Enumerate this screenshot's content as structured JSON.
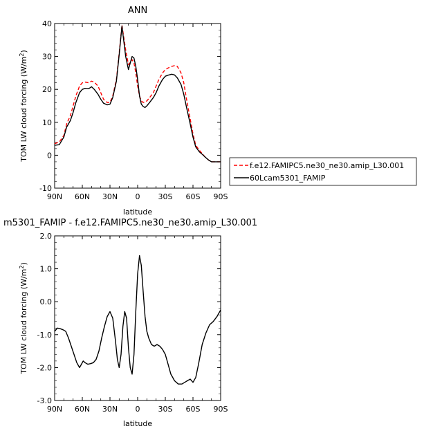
{
  "chart_data": [
    {
      "type": "line",
      "title": "ANN",
      "xlabel": "latitude",
      "ylabel": "TOM LW cloud forcing (W/m",
      "ylabel_sup": "2",
      "ylabel_end": ")",
      "xlim": [
        90,
        -90
      ],
      "ylim": [
        -10,
        40
      ],
      "x_ticks": [
        {
          "value": 90,
          "label": "90N"
        },
        {
          "value": 60,
          "label": "60N"
        },
        {
          "value": 30,
          "label": "30N"
        },
        {
          "value": 0,
          "label": "0"
        },
        {
          "value": -30,
          "label": "30S"
        },
        {
          "value": -60,
          "label": "60S"
        },
        {
          "value": -90,
          "label": "90S"
        }
      ],
      "y_ticks": [
        {
          "value": -10,
          "label": "-10"
        },
        {
          "value": 0,
          "label": "0"
        },
        {
          "value": 10,
          "label": "10"
        },
        {
          "value": 20,
          "label": "20"
        },
        {
          "value": 30,
          "label": "30"
        },
        {
          "value": 40,
          "label": "40"
        }
      ],
      "legend_position": "right",
      "series": [
        {
          "name": "f.e12.FAMIPC5.ne30_ne30.amip_L30.001",
          "color": "#ff0000",
          "dash": "dashed",
          "x": [
            90,
            85,
            80,
            77,
            73,
            70,
            67,
            63,
            60,
            57,
            53,
            50,
            47,
            43,
            40,
            37,
            33,
            30,
            27,
            23,
            20,
            17,
            13,
            10,
            8,
            6,
            4,
            2,
            0,
            -2,
            -4,
            -6,
            -8,
            -10,
            -13,
            -17,
            -20,
            -23,
            -27,
            -30,
            -33,
            -37,
            -40,
            -43,
            -47,
            -50,
            -53,
            -57,
            -60,
            -63,
            -67,
            -70,
            -73,
            -77,
            -80,
            -85,
            -90
          ],
          "y": [
            3.5,
            4.0,
            6.0,
            9.5,
            12.0,
            15.0,
            18.0,
            21.0,
            22.0,
            22.2,
            22.0,
            22.5,
            22.2,
            21.0,
            19.0,
            17.0,
            16.0,
            16.0,
            18.0,
            23.0,
            31.0,
            39.5,
            32.0,
            27.5,
            28.5,
            29.0,
            28.0,
            25.0,
            21.0,
            18.0,
            16.5,
            16.0,
            16.2,
            16.5,
            17.5,
            19.0,
            21.0,
            23.0,
            25.0,
            26.0,
            26.5,
            27.0,
            27.2,
            27.0,
            25.0,
            22.0,
            17.0,
            11.0,
            6.5,
            3.0,
            1.5,
            0.5,
            -0.5,
            -1.5,
            -2.0,
            -2.0,
            -2.0
          ]
        },
        {
          "name": "60Lcam5301_FAMIP",
          "color": "#000000",
          "dash": "solid",
          "x": [
            90,
            85,
            80,
            77,
            73,
            70,
            67,
            63,
            60,
            57,
            53,
            50,
            47,
            43,
            40,
            37,
            33,
            30,
            27,
            23,
            20,
            17,
            13,
            10,
            8,
            6,
            4,
            2,
            0,
            -2,
            -4,
            -6,
            -8,
            -10,
            -13,
            -17,
            -20,
            -23,
            -27,
            -30,
            -33,
            -37,
            -40,
            -43,
            -47,
            -50,
            -53,
            -57,
            -60,
            -63,
            -67,
            -70,
            -73,
            -77,
            -80,
            -85,
            -90
          ],
          "y": [
            3.0,
            3.2,
            5.5,
            8.5,
            10.5,
            13.0,
            16.0,
            19.0,
            20.0,
            20.3,
            20.2,
            20.8,
            20.0,
            18.5,
            17.0,
            15.8,
            15.3,
            15.5,
            17.5,
            22.5,
            30.5,
            39.2,
            30.0,
            26.0,
            28.0,
            30.0,
            29.5,
            27.0,
            23.0,
            18.0,
            15.5,
            14.8,
            14.5,
            15.0,
            16.0,
            17.5,
            19.0,
            21.0,
            23.0,
            24.0,
            24.3,
            24.6,
            24.4,
            23.5,
            21.5,
            18.5,
            14.5,
            9.5,
            5.5,
            2.5,
            1.0,
            0.3,
            -0.5,
            -1.5,
            -2.0,
            -2.0,
            -2.0
          ]
        }
      ]
    },
    {
      "type": "line",
      "title": "m5301_FAMIP - f.e12.FAMIPC5.ne30_ne30.amip_L30.001",
      "xlabel": "latitude",
      "ylabel": "TOM LW cloud forcing (W/m",
      "ylabel_sup": "2",
      "ylabel_end": ")",
      "xlim": [
        90,
        -90
      ],
      "ylim": [
        -3.0,
        2.0
      ],
      "x_ticks": [
        {
          "value": 90,
          "label": "90N"
        },
        {
          "value": 60,
          "label": "60N"
        },
        {
          "value": 30,
          "label": "30N"
        },
        {
          "value": 0,
          "label": "0"
        },
        {
          "value": -30,
          "label": "30S"
        },
        {
          "value": -60,
          "label": "60S"
        },
        {
          "value": -90,
          "label": "90S"
        }
      ],
      "y_ticks": [
        {
          "value": -3.0,
          "label": "-3.0"
        },
        {
          "value": -2.0,
          "label": "-2.0"
        },
        {
          "value": -1.0,
          "label": "-1.0"
        },
        {
          "value": 0.0,
          "label": "0.0"
        },
        {
          "value": 1.0,
          "label": "1.0"
        },
        {
          "value": 2.0,
          "label": "2.0"
        }
      ],
      "series": [
        {
          "color": "#000000",
          "dash": "solid",
          "x": [
            90,
            87,
            84,
            81,
            78,
            75,
            72,
            69,
            66,
            63,
            61,
            59,
            57,
            54,
            51,
            48,
            45,
            42,
            39,
            36,
            33,
            30,
            27,
            24,
            22,
            20,
            18,
            16,
            14,
            12,
            10,
            8,
            6,
            4,
            2,
            0,
            -2,
            -4,
            -6,
            -8,
            -10,
            -12,
            -15,
            -18,
            -21,
            -24,
            -27,
            -30,
            -33,
            -36,
            -40,
            -44,
            -48,
            -51,
            -54,
            -57,
            -60,
            -63,
            -66,
            -70,
            -74,
            -78,
            -82,
            -86,
            -90
          ],
          "y": [
            -0.9,
            -0.8,
            -0.82,
            -0.85,
            -0.9,
            -1.1,
            -1.35,
            -1.6,
            -1.85,
            -2.0,
            -1.9,
            -1.8,
            -1.85,
            -1.9,
            -1.88,
            -1.85,
            -1.75,
            -1.5,
            -1.1,
            -0.75,
            -0.45,
            -0.3,
            -0.5,
            -1.2,
            -1.75,
            -2.0,
            -1.6,
            -0.75,
            -0.3,
            -0.5,
            -1.4,
            -2.0,
            -2.2,
            -1.6,
            -0.3,
            0.85,
            1.4,
            1.1,
            0.3,
            -0.45,
            -0.9,
            -1.1,
            -1.3,
            -1.35,
            -1.3,
            -1.35,
            -1.45,
            -1.6,
            -1.9,
            -2.2,
            -2.4,
            -2.5,
            -2.5,
            -2.45,
            -2.4,
            -2.35,
            -2.45,
            -2.3,
            -1.9,
            -1.3,
            -0.95,
            -0.7,
            -0.6,
            -0.45,
            -0.25
          ]
        }
      ]
    }
  ]
}
